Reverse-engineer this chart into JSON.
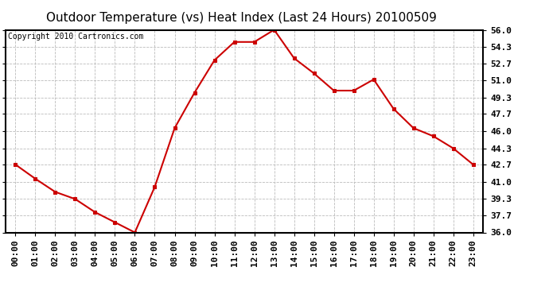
{
  "title": "Outdoor Temperature (vs) Heat Index (Last 24 Hours) 20100509",
  "copyright": "Copyright 2010 Cartronics.com",
  "x_labels": [
    "00:00",
    "01:00",
    "02:00",
    "03:00",
    "04:00",
    "05:00",
    "06:00",
    "07:00",
    "08:00",
    "09:00",
    "10:00",
    "11:00",
    "12:00",
    "13:00",
    "14:00",
    "15:00",
    "16:00",
    "17:00",
    "18:00",
    "19:00",
    "20:00",
    "21:00",
    "22:00",
    "23:00"
  ],
  "y_values": [
    42.7,
    41.3,
    40.0,
    39.3,
    38.0,
    37.0,
    36.0,
    40.5,
    46.3,
    49.8,
    53.0,
    54.8,
    54.8,
    56.0,
    53.2,
    51.7,
    50.0,
    50.0,
    51.1,
    48.2,
    46.3,
    45.5,
    44.3,
    42.7
  ],
  "ylim": [
    36.0,
    56.0
  ],
  "yticks": [
    36.0,
    37.7,
    39.3,
    41.0,
    42.7,
    44.3,
    46.0,
    47.7,
    49.3,
    51.0,
    52.7,
    54.3,
    56.0
  ],
  "line_color": "#cc0000",
  "marker_color": "#cc0000",
  "grid_color": "#bbbbbb",
  "background_color": "#ffffff",
  "plot_bg_color": "#ffffff",
  "title_fontsize": 11,
  "tick_fontsize": 8,
  "copyright_fontsize": 7
}
